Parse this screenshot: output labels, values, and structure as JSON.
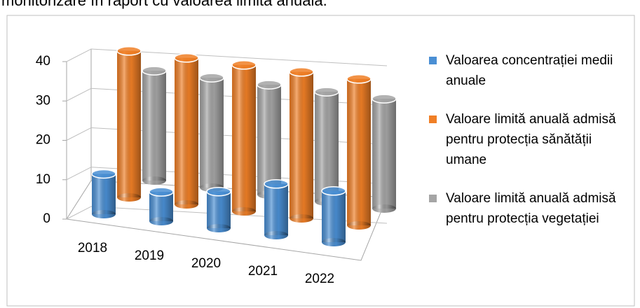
{
  "caption": "monitorizare în raport cu valoarea limită anuală.",
  "chart_data": {
    "type": "bar3d",
    "categories": [
      "2018",
      "2019",
      "2020",
      "2021",
      "2022"
    ],
    "series": [
      {
        "name": "Valoarea concentrației medii  anuale",
        "color": "#4a8fd4",
        "values": [
          11,
          8,
          10,
          14,
          14
        ]
      },
      {
        "name": "Valoare limită anuală admisă pentru protecția sănătății umane",
        "color": "#f07f26",
        "values": [
          40,
          40,
          40,
          40,
          40
        ]
      },
      {
        "name": "Valoare limită anuală admisă pentru protecția vegetației",
        "color": "#a5a5a5",
        "values": [
          30,
          30,
          30,
          30,
          30
        ]
      }
    ],
    "ylim": [
      0,
      40
    ],
    "yticks": [
      0,
      10,
      20,
      30,
      40
    ],
    "grid": true,
    "legend": "right"
  }
}
